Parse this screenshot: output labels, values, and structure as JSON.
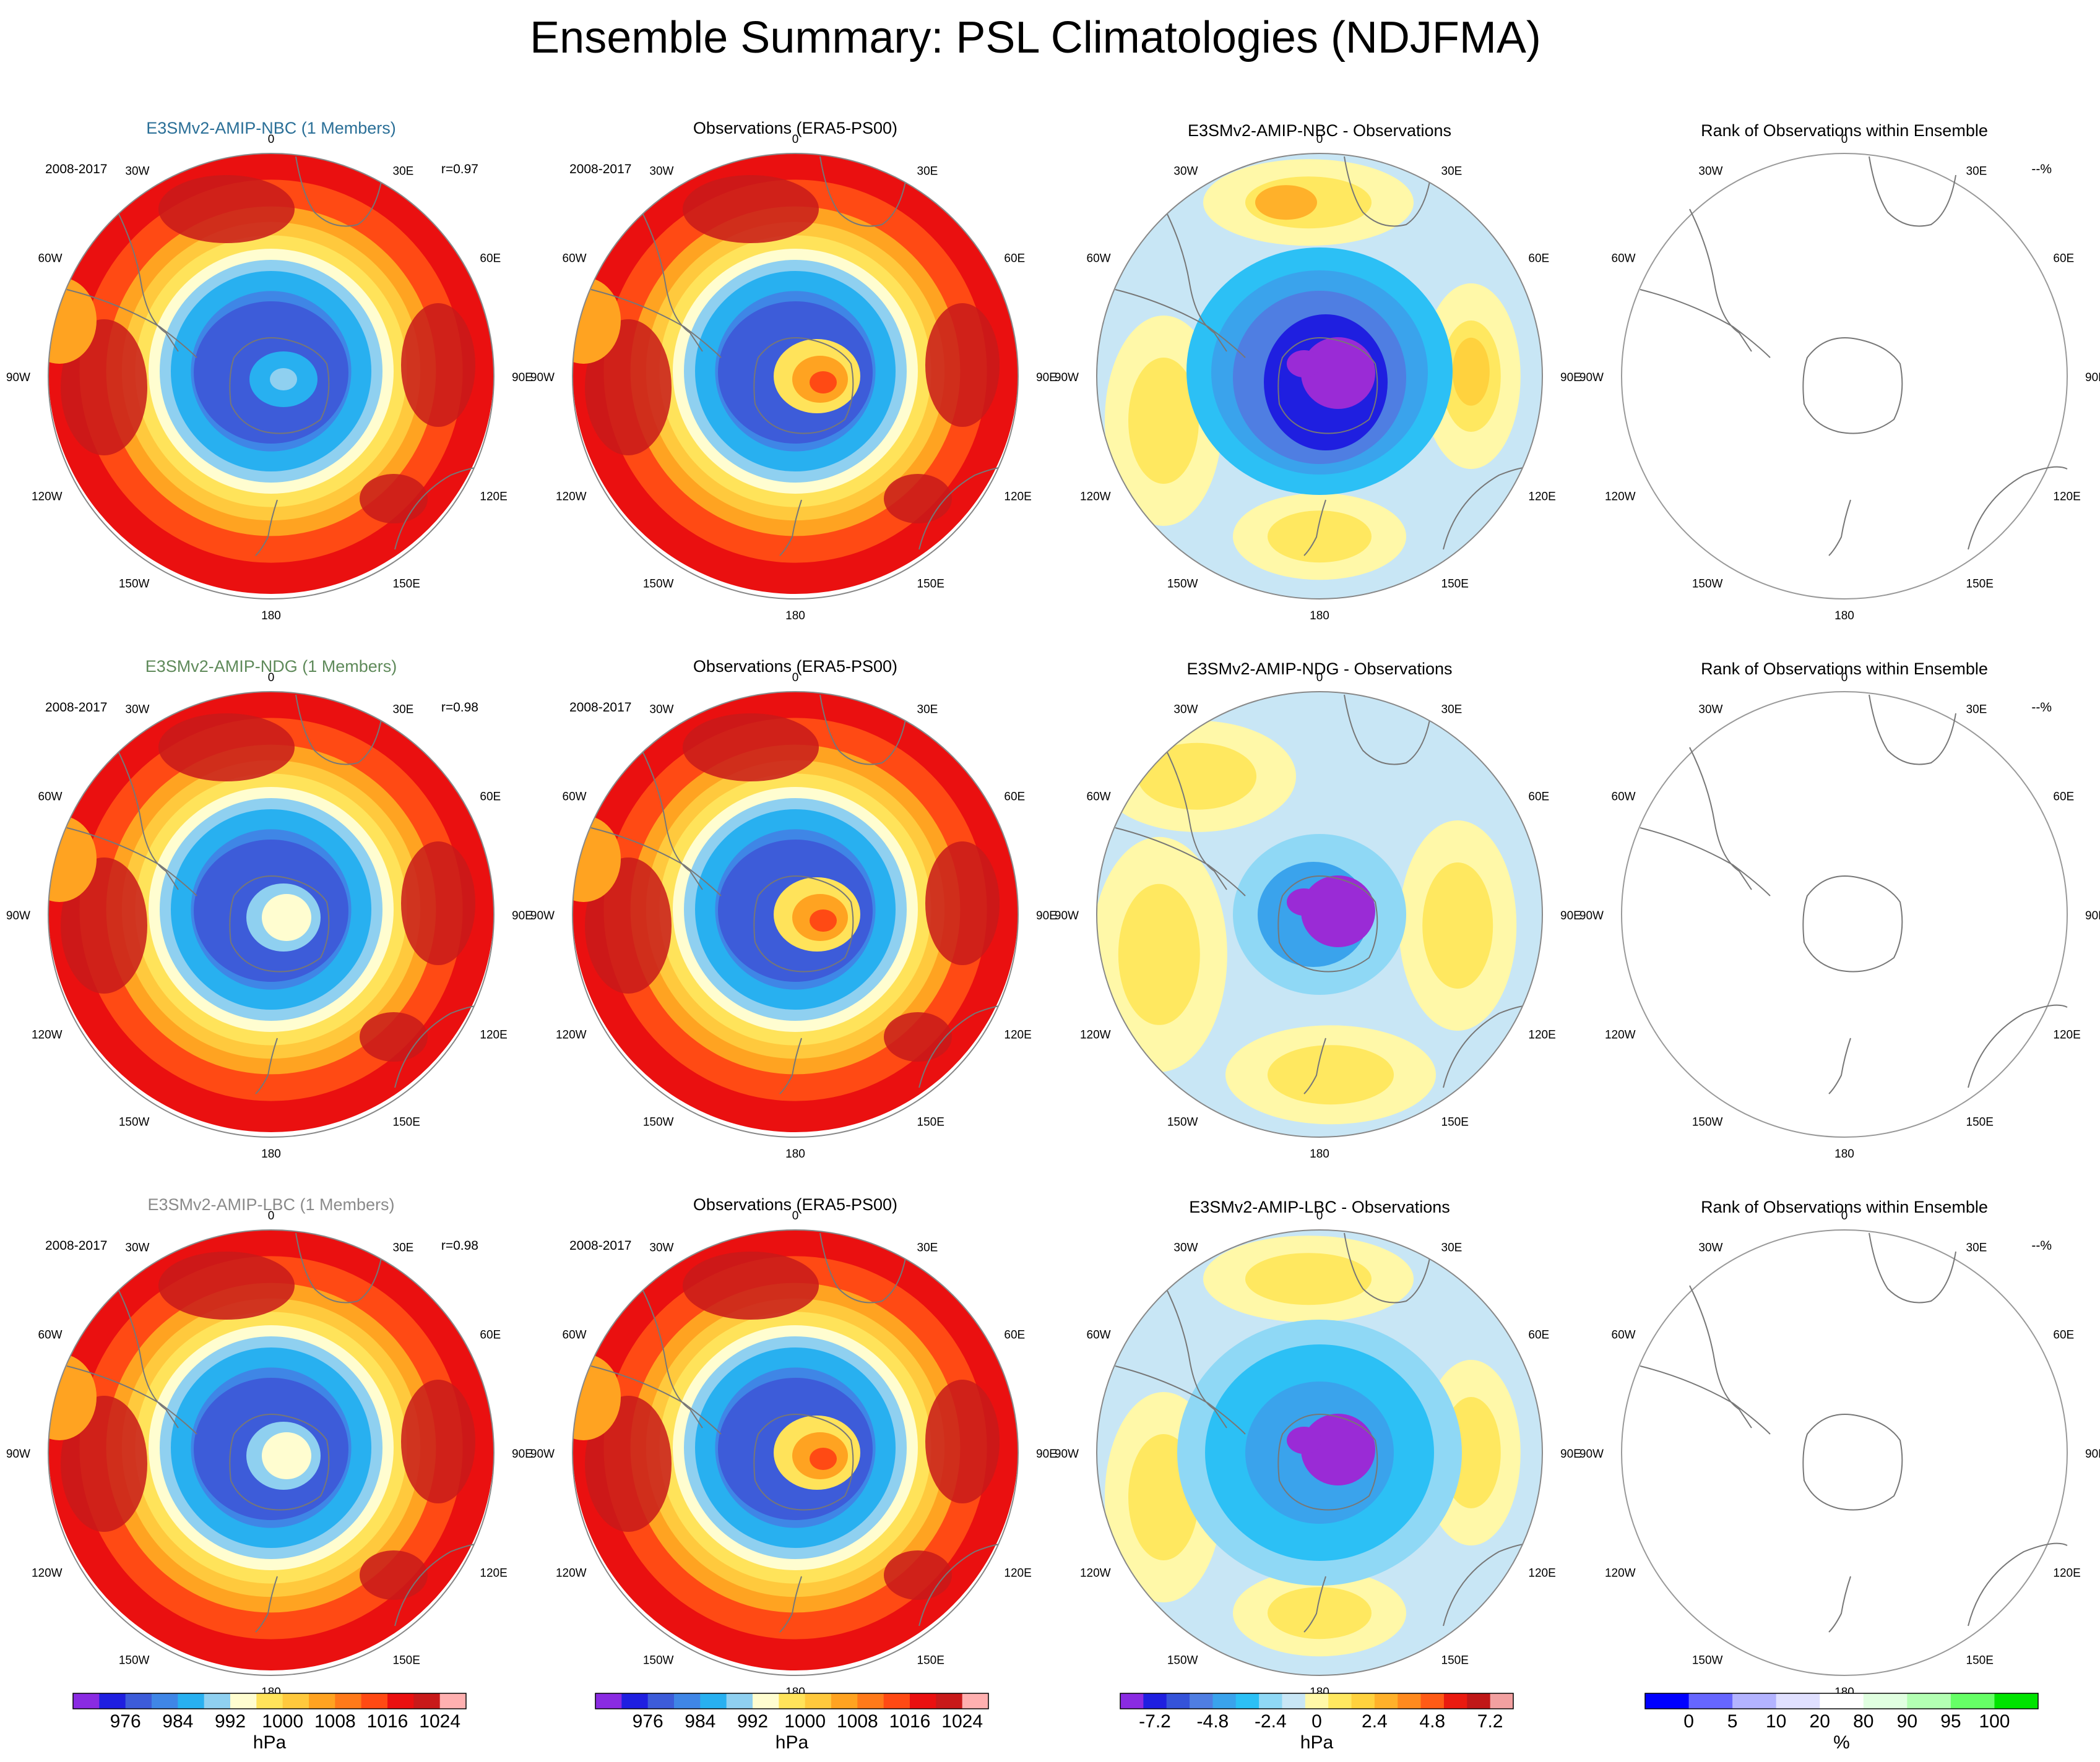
{
  "title": "Ensemble Summary: PSL Climatologies (NDJFMA)",
  "colors": {
    "nbc_title": "#2a6f97",
    "ndg_title": "#5f8a5a",
    "lbc_title": "#8a8a8a",
    "black": "#000000",
    "coast": "#777777",
    "diff_hi": "#9a2bd6"
  },
  "rows": [
    {
      "model_title": "E3SMv2-AMIP-NBC (1 Members)",
      "model_title_color_key": "nbc_title",
      "period_model": "2008-2017",
      "corr": "r=0.97",
      "obs_title": "Observations (ERA5-PS00)",
      "period_obs": "2008-2017",
      "diff_title": "E3SMv2-AMIP-NBC - Observations",
      "rank_title": "Rank of Observations within Ensemble",
      "rank_note": "--%",
      "model_center": "blue",
      "diff_pattern": "nbc"
    },
    {
      "model_title": "E3SMv2-AMIP-NDG (1 Members)",
      "model_title_color_key": "ndg_title",
      "period_model": "2008-2017",
      "corr": "r=0.98",
      "obs_title": "Observations (ERA5-PS00)",
      "period_obs": "2008-2017",
      "diff_title": "E3SMv2-AMIP-NDG - Observations",
      "rank_title": "Rank of Observations within Ensemble",
      "rank_note": "--%",
      "model_center": "white",
      "diff_pattern": "ndg"
    },
    {
      "model_title": "E3SMv2-AMIP-LBC (1 Members)",
      "model_title_color_key": "lbc_title",
      "period_model": "2008-2017",
      "corr": "r=0.98",
      "obs_title": "Observations (ERA5-PS00)",
      "period_obs": "2008-2017",
      "diff_title": "E3SMv2-AMIP-LBC - Observations",
      "rank_title": "Rank of Observations within Ensemble",
      "rank_note": "--%",
      "model_center": "white",
      "diff_pattern": "lbc"
    }
  ],
  "longitude_labels": [
    "0",
    "30E",
    "60E",
    "90E",
    "120E",
    "150E",
    "180",
    "150W",
    "120W",
    "90W",
    "60W",
    "30W"
  ],
  "colorbars": [
    {
      "unit": "hPa",
      "ticks": [
        "976",
        "984",
        "992",
        "1000",
        "1008",
        "1016",
        "1024"
      ],
      "colors": [
        "#8a2be2",
        "#1f1fe0",
        "#3d5cd9",
        "#3f86e6",
        "#28b0f0",
        "#8fd0f0",
        "#fffdd0",
        "#ffe35a",
        "#ffc93d",
        "#ffa321",
        "#ff7a1a",
        "#ff4a14",
        "#ea1010",
        "#c81a1a",
        "#ffb0b0"
      ],
      "tick_positions": [
        2,
        4,
        6,
        8,
        10,
        12,
        14
      ]
    },
    {
      "unit": "hPa",
      "ticks": [
        "976",
        "984",
        "992",
        "1000",
        "1008",
        "1016",
        "1024"
      ],
      "colors": [
        "#8a2be2",
        "#1f1fe0",
        "#3d5cd9",
        "#3f86e6",
        "#28b0f0",
        "#8fd0f0",
        "#fffdd0",
        "#ffe35a",
        "#ffc93d",
        "#ffa321",
        "#ff7a1a",
        "#ff4a14",
        "#ea1010",
        "#c81a1a",
        "#ffb0b0"
      ],
      "tick_positions": [
        2,
        4,
        6,
        8,
        10,
        12,
        14
      ]
    },
    {
      "unit": "hPa",
      "ticks": [
        "-7.2",
        "-4.8",
        "-2.4",
        "0",
        "2.4",
        "4.8",
        "7.2"
      ],
      "colors": [
        "#8a2be2",
        "#1f1fe0",
        "#3553d9",
        "#4f7ee2",
        "#3aa3ec",
        "#2cc0f5",
        "#8fd8f5",
        "#c8e6f5",
        "#fff8a8",
        "#ffe860",
        "#ffd23e",
        "#ffb12a",
        "#ff8a1e",
        "#ff5b16",
        "#ea1b10",
        "#c01818",
        "#f2a0a0"
      ],
      "tick_positions": [
        1.5,
        4,
        6.5,
        8.5,
        11,
        13.5,
        16
      ]
    },
    {
      "unit": "%",
      "ticks": [
        "0",
        "5",
        "10",
        "20",
        "80",
        "90",
        "95",
        "100"
      ],
      "colors": [
        "#0000ff",
        "#6666ff",
        "#b3b3ff",
        "#e0e0ff",
        "#ffffff",
        "#e0ffe0",
        "#b3ffb3",
        "#66ff66",
        "#00e400"
      ],
      "tick_positions": [
        1,
        2,
        3,
        4,
        5,
        6,
        7,
        8
      ]
    }
  ]
}
